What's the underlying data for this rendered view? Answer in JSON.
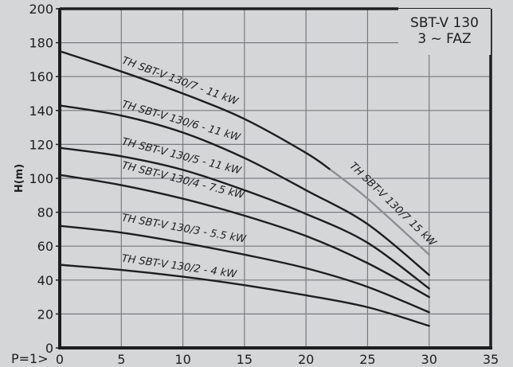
{
  "chart_data": {
    "type": "line",
    "title": "SBT-V 130",
    "subtitle": "3 ~ FAZ",
    "xlabel": "",
    "x_prefix_label": "P=1>",
    "ylabel": "H(m)",
    "xlim": [
      0,
      35
    ],
    "ylim": [
      0,
      200
    ],
    "xticks": [
      0,
      5,
      10,
      15,
      20,
      25,
      30,
      35
    ],
    "yticks": [
      0,
      20,
      40,
      60,
      80,
      100,
      120,
      140,
      160,
      180,
      200
    ],
    "grid": true,
    "colors": {
      "background": "#d5d6d8",
      "grid": "#7a7b7e",
      "axis": "#1e1e20",
      "curve": "#1e1e20",
      "curve_alt": "#8e8f92"
    },
    "series": [
      {
        "name": "TH SBT-V 130/7 - 11 kW",
        "color": "#1e1e20",
        "x": [
          0,
          5,
          10,
          15,
          20,
          22
        ],
        "y": [
          175,
          163,
          150,
          135,
          115,
          105
        ]
      },
      {
        "name": "TH SBT-V 130/7 15 kW",
        "color": "#8e8f92",
        "x": [
          22,
          25,
          30
        ],
        "y": [
          105,
          88,
          55
        ]
      },
      {
        "name": "TH SBT-V 130/6 - 11 kW",
        "color": "#1e1e20",
        "x": [
          0,
          5,
          10,
          15,
          20,
          25,
          30
        ],
        "y": [
          143,
          137,
          127,
          112,
          93,
          73,
          43
        ]
      },
      {
        "name": "TH SBT-V 130/5 - 11 kW",
        "color": "#1e1e20",
        "x": [
          0,
          5,
          10,
          15,
          20,
          25,
          30
        ],
        "y": [
          118,
          113,
          105,
          93,
          79,
          62,
          35
        ]
      },
      {
        "name": "TH SBT-V 130/4 - 7.5 kW",
        "color": "#1e1e20",
        "x": [
          0,
          5,
          10,
          15,
          20,
          25,
          30
        ],
        "y": [
          102,
          96,
          88,
          78,
          66,
          50,
          30
        ]
      },
      {
        "name": "TH SBT-V 130/3 - 5.5 kW",
        "color": "#1e1e20",
        "x": [
          0,
          5,
          10,
          15,
          20,
          25,
          30
        ],
        "y": [
          72,
          68,
          62,
          55,
          47,
          36,
          21
        ]
      },
      {
        "name": "TH SBT-V 130/2 - 4 kW",
        "color": "#1e1e20",
        "x": [
          0,
          5,
          10,
          15,
          20,
          25,
          30
        ],
        "y": [
          49,
          46,
          42,
          37,
          31,
          24,
          13
        ]
      }
    ],
    "annotations": [
      {
        "text": "TH SBT-V 130/7 - 11 kW",
        "x": 5,
        "y": 168,
        "angle": 20
      },
      {
        "text": "TH SBT-V 130/6 - 11 kW",
        "x": 5,
        "y": 142,
        "angle": 16
      },
      {
        "text": "TH SBT-V 130/5 - 11 kW",
        "x": 5,
        "y": 120,
        "angle": 14
      },
      {
        "text": "TH SBT-V 130/4 - 7.5 kW",
        "x": 5,
        "y": 106,
        "angle": 14
      },
      {
        "text": "TH SBT-V 130/3 - 5.5 kW",
        "x": 5,
        "y": 75,
        "angle": 10
      },
      {
        "text": "TH SBT-V 130/2 - 4 kW",
        "x": 5,
        "y": 51,
        "angle": 8
      },
      {
        "text": "TH SBT-V 130/7 15 kW",
        "x": 23.5,
        "y": 107,
        "angle": 44
      }
    ]
  }
}
